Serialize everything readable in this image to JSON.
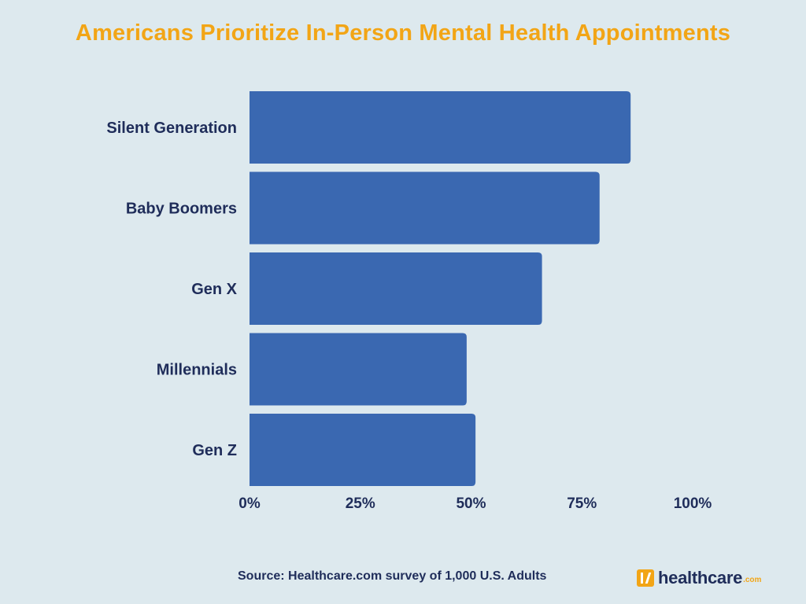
{
  "chart_data": {
    "type": "bar",
    "orientation": "horizontal",
    "title": "Americans Prioritize In-Person Mental Health Appointments",
    "categories": [
      "Silent Generation",
      "Baby Boomers",
      "Gen X",
      "Millennials",
      "Gen Z"
    ],
    "values": [
      86,
      79,
      66,
      49,
      51
    ],
    "unit": "%",
    "xlim": [
      0,
      100
    ],
    "xticks": [
      "0%",
      "25%",
      "50%",
      "75%",
      "100%"
    ],
    "xtick_values": [
      0,
      25,
      50,
      75,
      100
    ],
    "grid": false,
    "legend": "none",
    "bar_color": "#3a68b1",
    "title_color": "#f2a516",
    "label_color": "#1f2d5a"
  },
  "footer": {
    "source": "Source: Healthcare.com survey of 1,000 U.S. Adults",
    "logo_text": "healthcare",
    "logo_suffix": ".com"
  }
}
